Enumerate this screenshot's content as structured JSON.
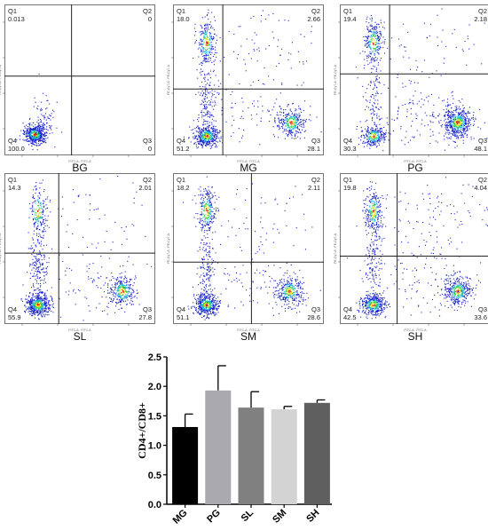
{
  "flow_panels": [
    {
      "id": "BG",
      "label": "BG",
      "q1": "0.013",
      "q2": "0",
      "q3": "0",
      "q4": "100.0",
      "gate": [
        0.445,
        0.475
      ]
    },
    {
      "id": "MG",
      "label": "MG",
      "q1": "18.0",
      "q2": "2.66",
      "q3": "28.1",
      "q4": "51.2",
      "gate": [
        0.33,
        0.56
      ]
    },
    {
      "id": "PG",
      "label": "PG",
      "q1": "19.4",
      "q2": "2.18",
      "q3": "48.1",
      "q4": "30.3",
      "gate": [
        0.33,
        0.46
      ]
    },
    {
      "id": "SL",
      "label": "SL",
      "q1": "14.3",
      "q2": "2.01",
      "q3": "27.8",
      "q4": "55.9",
      "gate": [
        0.36,
        0.53
      ]
    },
    {
      "id": "SM",
      "label": "SM",
      "q1": "18.2",
      "q2": "2.11",
      "q3": "28.6",
      "q4": "51.1",
      "gate": [
        0.52,
        0.59
      ]
    },
    {
      "id": "SH",
      "label": "SH",
      "q1": "19.8",
      "q2": "4.04",
      "q3": "33.6",
      "q4": "42.5",
      "gate": [
        0.38,
        0.55
      ]
    }
  ],
  "flow_axis_labels": {
    "x": "FITC-A : FITC-A",
    "y": "PE-Cy7-A : PE-Cy7-A"
  },
  "chart_data": {
    "type": "bar",
    "categories": [
      "MG",
      "PG",
      "SL",
      "SM",
      "SH"
    ],
    "values": [
      1.31,
      1.93,
      1.64,
      1.61,
      1.72
    ],
    "errors": [
      0.22,
      0.42,
      0.27,
      0.05,
      0.05
    ],
    "colors": [
      "#000000",
      "#a9a9ae",
      "#808080",
      "#d3d3d3",
      "#5f5f5f"
    ],
    "ylabel": "CD4+/CD8+",
    "xlabel": "",
    "title": "",
    "ylim": [
      0.0,
      2.5
    ],
    "yticks": [
      "0.0",
      "0.5",
      "1.0",
      "1.5",
      "2.0",
      "2.5"
    ],
    "grid": false
  },
  "colors": {
    "dot_blue": "#1a24c8",
    "dot_cyan": "#18b4e0",
    "dot_green": "#3cd24a",
    "dot_yellow": "#f0e020",
    "dot_red": "#e02010"
  }
}
